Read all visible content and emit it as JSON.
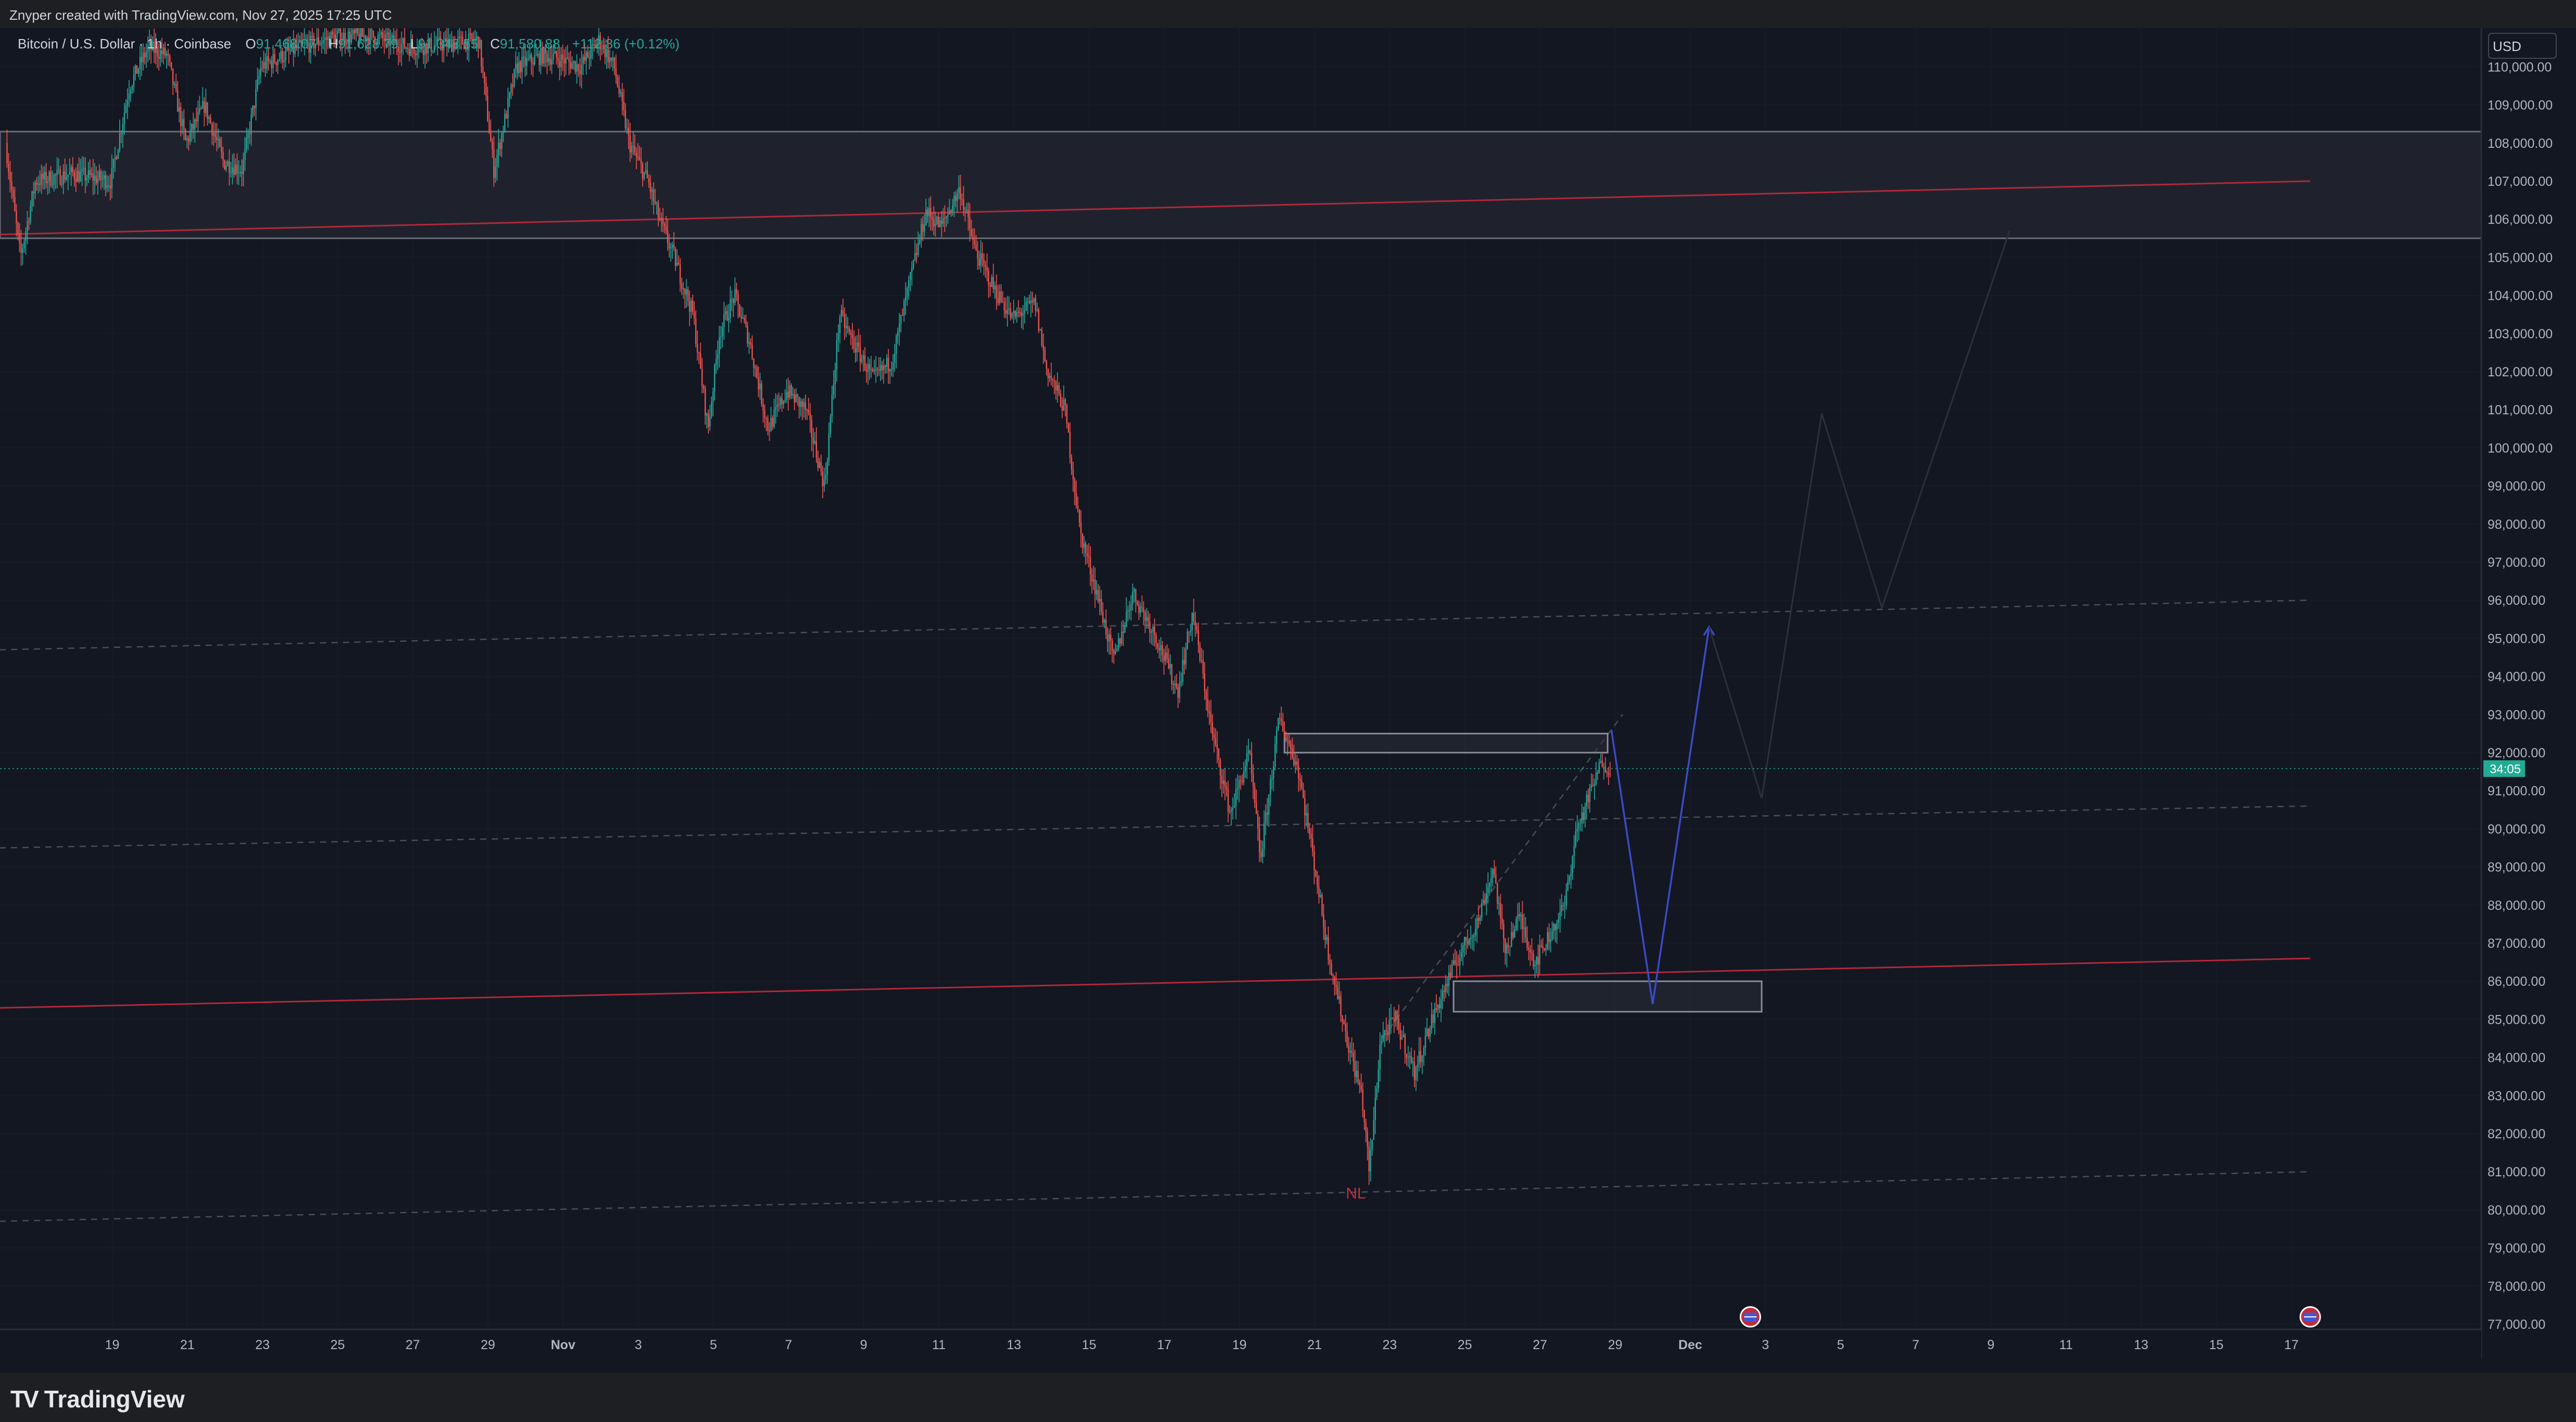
{
  "header": {
    "credit": "Znyper created with TradingView.com, Nov 27, 2025 17:25 UTC"
  },
  "legend": {
    "symbol": "Bitcoin / U.S. Dollar · 1h · Coinbase",
    "o_label": "O",
    "o_value": "91,468.07",
    "h_label": "H",
    "h_value": "91,628.79",
    "l_label": "L",
    "l_value": "91,348.55",
    "c_label": "C",
    "c_value": "91,580.88",
    "change": "+112.86 (+0.12%)"
  },
  "currency_button": "USD",
  "brand": "TradingView",
  "colors": {
    "background": "#131722",
    "grid": "#1b1f2b",
    "up": "#26a69a",
    "down": "#ef5350",
    "trendline": "#b2283a",
    "projection": "#3b4bc8",
    "countdown_bg": "#22ab94"
  },
  "chart_data": {
    "type": "candlestick",
    "symbol": "BTCUSD",
    "timeframe": "1h",
    "ylim": [
      76800,
      110800
    ],
    "y_ticks": [
      77000,
      78000,
      79000,
      80000,
      81000,
      82000,
      83000,
      84000,
      85000,
      86000,
      87000,
      88000,
      89000,
      90000,
      91000,
      92000,
      93000,
      94000,
      95000,
      96000,
      97000,
      98000,
      99000,
      100000,
      101000,
      102000,
      103000,
      104000,
      105000,
      106000,
      107000,
      108000,
      109000,
      110000
    ],
    "x_ticks": [
      "19",
      "21",
      "23",
      "25",
      "27",
      "29",
      "Nov",
      "3",
      "5",
      "7",
      "9",
      "11",
      "13",
      "15",
      "17",
      "19",
      "21",
      "23",
      "25",
      "27",
      "29",
      "Dec",
      "3",
      "5",
      "7",
      "9",
      "11",
      "13",
      "15",
      "17"
    ],
    "x_tick_days": [
      -12,
      -10,
      -8,
      -6,
      -4,
      -2,
      0,
      2,
      4,
      6,
      8,
      10,
      12,
      14,
      16,
      18,
      20,
      22,
      24,
      26,
      28,
      30,
      32,
      34,
      36,
      38,
      40,
      42,
      44,
      46
    ],
    "current_price": 91580.88,
    "countdown": "34:05",
    "price_path": [
      [
        -14.8,
        108000
      ],
      [
        -14.4,
        105000
      ],
      [
        -14,
        107000
      ],
      [
        -13,
        107200
      ],
      [
        -12,
        107000
      ],
      [
        -11.5,
        109500
      ],
      [
        -11,
        110500
      ],
      [
        -10.5,
        110300
      ],
      [
        -10,
        108000
      ],
      [
        -9.5,
        109000
      ],
      [
        -9,
        107500
      ],
      [
        -8.5,
        107300
      ],
      [
        -8,
        110000
      ],
      [
        -7,
        110500
      ],
      [
        -6,
        110800
      ],
      [
        -5,
        110800
      ],
      [
        -4,
        110500
      ],
      [
        -3,
        110600
      ],
      [
        -2.2,
        110700
      ],
      [
        -1.8,
        107300
      ],
      [
        -1.2,
        110000
      ],
      [
        -0.5,
        110300
      ],
      [
        0,
        110200
      ],
      [
        0.5,
        110000
      ],
      [
        1,
        110700
      ],
      [
        1.4,
        110000
      ],
      [
        1.8,
        108000
      ],
      [
        2.3,
        107000
      ],
      [
        2.6,
        106000
      ],
      [
        3,
        105000
      ],
      [
        3.5,
        103500
      ],
      [
        3.9,
        100500
      ],
      [
        4.2,
        103000
      ],
      [
        4.6,
        104000
      ],
      [
        5,
        102800
      ],
      [
        5.5,
        100500
      ],
      [
        6,
        101500
      ],
      [
        6.5,
        101000
      ],
      [
        7,
        99000
      ],
      [
        7.4,
        103500
      ],
      [
        7.8,
        102700
      ],
      [
        8.3,
        101800
      ],
      [
        8.8,
        102300
      ],
      [
        9.3,
        104500
      ],
      [
        9.7,
        106200
      ],
      [
        10.1,
        105800
      ],
      [
        10.6,
        106800
      ],
      [
        11,
        105200
      ],
      [
        11.5,
        104200
      ],
      [
        12,
        103400
      ],
      [
        12.6,
        103800
      ],
      [
        12.9,
        102100
      ],
      [
        13.4,
        101000
      ],
      [
        13.8,
        97800
      ],
      [
        14.3,
        96000
      ],
      [
        14.7,
        94400
      ],
      [
        15.2,
        96200
      ],
      [
        15.8,
        95100
      ],
      [
        16.4,
        93600
      ],
      [
        16.8,
        95700
      ],
      [
        17.3,
        92600
      ],
      [
        17.8,
        90400
      ],
      [
        18.3,
        92000
      ],
      [
        18.6,
        89200
      ],
      [
        19.1,
        92900
      ],
      [
        19.6,
        91600
      ],
      [
        20,
        89300
      ],
      [
        20.4,
        86800
      ],
      [
        20.9,
        84500
      ],
      [
        21.3,
        83000
      ],
      [
        21.5,
        81000
      ],
      [
        21.8,
        84500
      ],
      [
        22.2,
        85000
      ],
      [
        22.7,
        83600
      ],
      [
        23.1,
        84800
      ],
      [
        23.5,
        85800
      ],
      [
        23.9,
        86700
      ],
      [
        24.4,
        87600
      ],
      [
        24.8,
        89000
      ],
      [
        25.1,
        86800
      ],
      [
        25.5,
        87700
      ],
      [
        25.9,
        86500
      ],
      [
        26.3,
        87200
      ],
      [
        26.7,
        88000
      ],
      [
        27,
        89900
      ],
      [
        27.4,
        91000
      ],
      [
        27.7,
        91800
      ],
      [
        27.9,
        91580
      ]
    ],
    "horizontal_zone": {
      "from": 105500,
      "to": 108300
    },
    "trendlines": [
      {
        "x1": -15,
        "y1": 105600,
        "x2": 46.5,
        "y2": 107000
      },
      {
        "x1": -15,
        "y1": 85300,
        "x2": 46.5,
        "y2": 86600
      }
    ],
    "dashed_lines": [
      {
        "x1": -15,
        "y1": 94700,
        "x2": 46.5,
        "y2": 96000
      },
      {
        "x1": -15,
        "y1": 89500,
        "x2": 46.5,
        "y2": 90600
      },
      {
        "x1": -15,
        "y1": 79700,
        "x2": 46.5,
        "y2": 81000
      },
      {
        "x1": 21.8,
        "y1": 84500,
        "x2": 28.2,
        "y2": 93000
      }
    ],
    "rectangles": [
      {
        "x1": 19.2,
        "x2": 27.8,
        "y1": 92000,
        "y2": 92500
      },
      {
        "x1": 23.7,
        "x2": 31.9,
        "y1": 85200,
        "y2": 86000
      }
    ],
    "projection_path": [
      [
        27.9,
        92600
      ],
      [
        29,
        85400
      ],
      [
        30.5,
        95300
      ]
    ],
    "faded_projection_path": [
      [
        30.5,
        95300
      ],
      [
        31.9,
        90800
      ],
      [
        33.5,
        100900
      ],
      [
        35.1,
        95800
      ],
      [
        38.5,
        105700
      ]
    ],
    "annotation": {
      "text": "NL",
      "x": 21.1,
      "y": 80300
    },
    "event_markers": [
      {
        "x": 31.6
      },
      {
        "x": 46.5
      }
    ]
  }
}
